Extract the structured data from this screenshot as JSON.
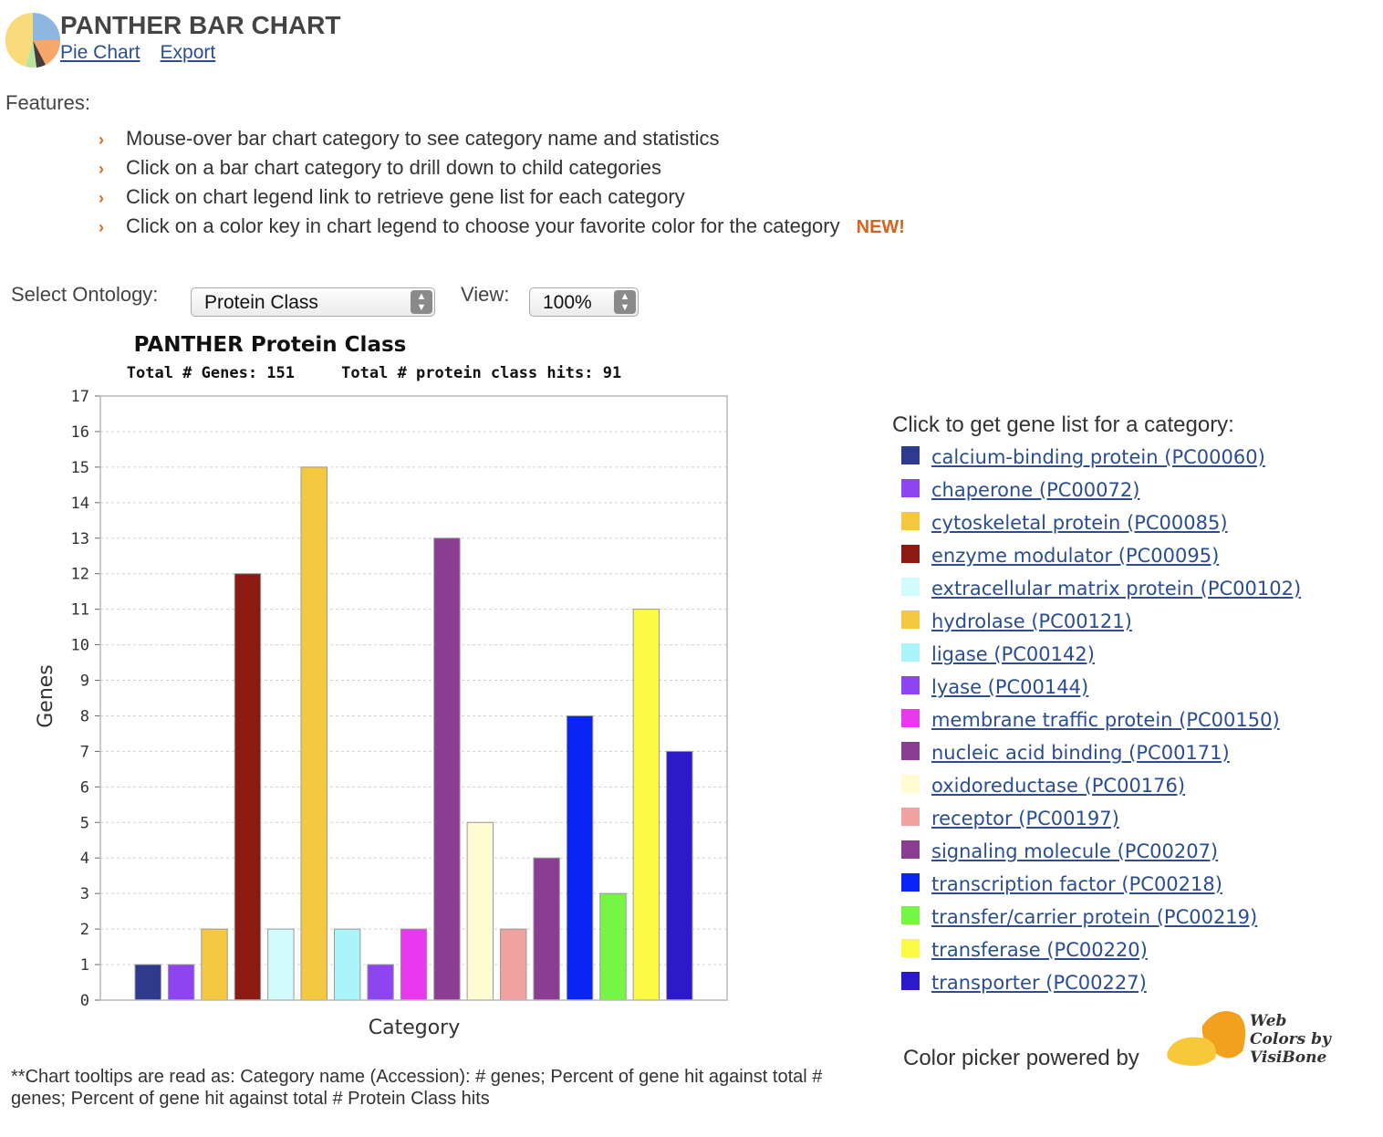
{
  "header": {
    "title": "PANTHER BAR CHART",
    "links": [
      "Pie Chart",
      "Export"
    ]
  },
  "features": {
    "label": "Features:",
    "items": [
      "Mouse-over bar chart category to see category name and statistics",
      "Click on a bar chart category to drill down to child categories",
      "Click on chart legend link to retrieve gene list for each category",
      "Click on a color key in chart legend to choose your favorite color for the category"
    ],
    "new_badge": "NEW!"
  },
  "controls": {
    "ontology_label": "Select Ontology:",
    "ontology_value": "Protein Class",
    "view_label": "View:",
    "view_value": "100%"
  },
  "chart_data": {
    "type": "bar",
    "title": "PANTHER Protein Class",
    "subtitle": "Total # Genes: 151     Total # protein class hits: 91",
    "xlabel": "Category",
    "ylabel": "Genes",
    "ylim": [
      0,
      17
    ],
    "grid": true,
    "categories": [
      "calcium-binding protein (PC00060)",
      "chaperone (PC00072)",
      "cytoskeletal protein (PC00085)",
      "enzyme modulator (PC00095)",
      "extracellular matrix protein (PC00102)",
      "hydrolase (PC00121)",
      "ligase (PC00142)",
      "lyase (PC00144)",
      "membrane traffic protein (PC00150)",
      "nucleic acid binding (PC00171)",
      "oxidoreductase (PC00176)",
      "receptor (PC00197)",
      "signaling molecule (PC00207)",
      "transcription factor (PC00218)",
      "transfer/carrier protein (PC00219)",
      "transferase (PC00220)",
      "transporter (PC00227)"
    ],
    "values": [
      1,
      1,
      2,
      12,
      2,
      15,
      2,
      1,
      2,
      13,
      5,
      2,
      4,
      8,
      3,
      11,
      7
    ],
    "colors": [
      "#2e3a8c",
      "#8f44f2",
      "#f5c842",
      "#8b1a12",
      "#d2fbfb",
      "#f5c842",
      "#aaf5fb",
      "#8f44f2",
      "#e838f0",
      "#8b3d92",
      "#fffbd2",
      "#f0a2a0",
      "#8b3d92",
      "#0a24f5",
      "#76f545",
      "#fdfa45",
      "#2b1ac8"
    ]
  },
  "legend": {
    "title": "Click to get gene list for a category:"
  },
  "footer": {
    "powered_by": "Color picker powered by",
    "vis_logo_text": [
      "Web",
      "Colors by",
      "VisiBone"
    ],
    "footnote": "**Chart tooltips are read as: Category name (Accession): # genes; Percent of gene hit against total # genes; Percent of gene hit against total # Protein Class hits"
  }
}
